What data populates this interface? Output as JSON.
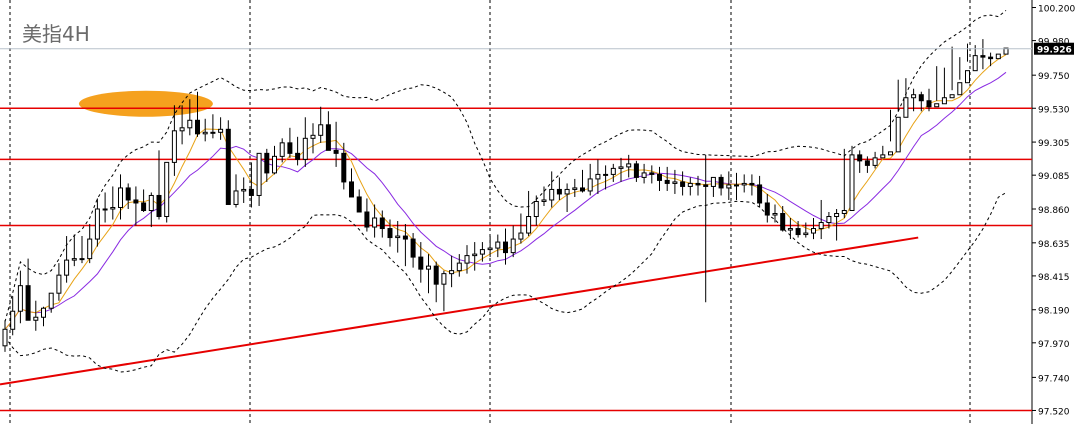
{
  "chart_data": {
    "type": "candlestick",
    "title": "美指4H",
    "ylim": [
      97.43,
      100.25
    ],
    "y_ticks": [
      "100.200",
      "99.980",
      "99.750",
      "99.530",
      "99.305",
      "99.085",
      "98.860",
      "98.635",
      "98.415",
      "98.190",
      "97.970",
      "97.740",
      "97.520"
    ],
    "current_price": "99.926",
    "horizontal_lines": [
      99.53,
      99.19,
      98.75,
      97.52
    ],
    "trendline": {
      "x": [
        0,
        116
      ],
      "y": [
        97.72,
        98.67
      ]
    },
    "resistance_zone": {
      "x_center": 17,
      "y": 99.56
    },
    "grid": "vertical dotted separators",
    "candles": {
      "o": [
        97.95,
        98.06,
        98.18,
        98.35,
        98.12,
        98.14,
        98.2,
        98.3,
        98.42,
        98.52,
        98.53,
        98.53,
        98.66,
        98.86,
        98.86,
        98.87,
        99.0,
        98.92,
        98.9,
        98.85,
        98.95,
        98.81,
        99.17,
        99.38,
        99.4,
        99.45,
        99.36,
        99.37,
        99.37,
        99.39,
        98.89,
        98.98,
        98.99,
        98.95,
        99.23,
        99.1,
        99.21,
        99.3,
        99.23,
        99.19,
        99.33,
        99.35,
        99.42,
        99.25,
        99.23,
        99.04,
        98.94,
        98.84,
        98.74,
        98.8,
        98.73,
        98.67,
        98.68,
        98.66,
        98.54,
        98.46,
        98.48,
        98.36,
        98.43,
        98.45,
        98.5,
        98.55,
        98.56,
        98.59,
        98.6,
        98.64,
        98.57,
        98.66,
        98.7,
        98.81,
        98.91,
        98.92,
        98.99,
        98.96,
        98.99,
        99.0,
        98.98,
        99.06,
        99.09,
        99.09,
        99.13,
        99.14,
        99.16,
        99.07,
        99.1,
        99.09,
        99.05,
        99.03,
        99.04,
        99.01,
        99.03,
        99.02,
        99.01,
        99.07,
        99.0,
        99.02,
        99.02,
        99.03,
        99.02,
        98.9,
        98.82,
        98.83,
        98.72,
        98.73,
        98.69,
        98.7,
        98.73,
        98.77,
        98.81,
        98.83,
        98.85,
        99.22,
        99.18,
        99.15,
        99.2,
        99.22,
        99.24,
        99.47,
        99.6,
        99.62,
        99.58,
        99.54,
        99.56,
        99.6,
        99.62,
        99.7,
        99.78,
        99.88,
        99.87,
        99.86,
        99.89
      ],
      "h": [
        98.12,
        98.28,
        98.45,
        98.53,
        98.25,
        98.21,
        98.29,
        98.5,
        98.68,
        98.69,
        98.68,
        98.76,
        98.93,
        98.97,
        99.01,
        99.09,
        99.03,
        99.01,
        98.99,
        98.97,
        99.25,
        99.11,
        99.55,
        99.55,
        99.59,
        99.64,
        99.46,
        99.49,
        99.47,
        99.45,
        99.09,
        99.07,
        99.17,
        99.23,
        99.26,
        99.28,
        99.33,
        99.4,
        99.34,
        99.47,
        99.43,
        99.54,
        99.51,
        99.44,
        99.3,
        99.13,
        98.99,
        98.93,
        98.89,
        98.85,
        98.79,
        98.78,
        98.76,
        98.7,
        98.64,
        98.56,
        98.51,
        98.45,
        98.55,
        98.56,
        98.62,
        98.64,
        98.64,
        98.68,
        98.69,
        98.73,
        98.75,
        98.83,
        98.98,
        98.95,
        99.01,
        99.11,
        99.07,
        99.03,
        99.06,
        99.12,
        99.16,
        99.19,
        99.15,
        99.16,
        99.2,
        99.22,
        99.18,
        99.16,
        99.15,
        99.14,
        99.14,
        99.12,
        99.11,
        99.07,
        99.08,
        99.22,
        99.06,
        99.09,
        99.11,
        99.1,
        99.09,
        99.09,
        99.08,
        98.96,
        98.89,
        98.88,
        98.8,
        98.78,
        98.77,
        98.8,
        98.92,
        98.84,
        98.86,
        99.26,
        99.28,
        99.25,
        99.21,
        99.24,
        99.28,
        99.52,
        99.72,
        99.73,
        99.66,
        99.64,
        99.66,
        99.81,
        99.8,
        99.94,
        99.87,
        99.96,
        99.95,
        99.99,
        99.9
      ],
      "l": [
        97.91,
        98.02,
        98.1,
        98.13,
        98.05,
        98.08,
        98.17,
        98.25,
        98.37,
        98.48,
        98.5,
        98.5,
        98.61,
        98.77,
        98.79,
        98.79,
        98.86,
        98.75,
        98.84,
        98.74,
        98.79,
        98.77,
        99.08,
        99.29,
        99.35,
        99.34,
        99.31,
        99.33,
        99.32,
        98.89,
        98.87,
        98.9,
        98.87,
        98.88,
        99.04,
        99.09,
        99.17,
        99.2,
        99.15,
        99.14,
        99.23,
        99.3,
        99.26,
        99.14,
        98.99,
        98.94,
        98.87,
        98.71,
        98.67,
        98.67,
        98.61,
        98.57,
        98.48,
        98.47,
        98.37,
        98.3,
        98.24,
        98.18,
        98.34,
        98.41,
        98.43,
        98.45,
        98.51,
        98.54,
        98.54,
        98.49,
        98.54,
        98.63,
        98.68,
        98.75,
        98.88,
        98.87,
        98.92,
        98.84,
        98.94,
        98.97,
        98.95,
        98.96,
        98.99,
        99.04,
        99.04,
        99.07,
        99.04,
        99.03,
        99.03,
        98.98,
        98.98,
        98.96,
        98.95,
        98.95,
        98.95,
        98.24,
        98.94,
        98.95,
        98.92,
        98.92,
        98.97,
        98.95,
        98.87,
        98.77,
        98.77,
        98.71,
        98.66,
        98.67,
        98.67,
        98.66,
        98.66,
        98.73,
        98.65,
        98.8,
        99.1,
        99.1,
        99.1,
        99.13,
        99.21,
        99.31,
        99.51,
        99.56,
        99.51,
        99.51,
        99.51,
        99.58,
        99.57,
        99.65,
        99.72,
        99.84,
        99.84,
        99.79,
        99.81
      ],
      "c": [
        98.06,
        98.18,
        98.35,
        98.12,
        98.14,
        98.2,
        98.3,
        98.42,
        98.52,
        98.53,
        98.53,
        98.66,
        98.86,
        98.86,
        98.87,
        99.0,
        98.92,
        98.9,
        98.85,
        98.95,
        98.81,
        99.17,
        99.38,
        99.4,
        99.45,
        99.36,
        99.37,
        99.37,
        99.39,
        98.89,
        98.98,
        98.99,
        98.95,
        99.23,
        99.1,
        99.21,
        99.3,
        99.23,
        99.19,
        99.33,
        99.35,
        99.42,
        99.25,
        99.23,
        99.04,
        98.94,
        98.84,
        98.74,
        98.8,
        98.73,
        98.67,
        98.68,
        98.66,
        98.54,
        98.46,
        98.48,
        98.36,
        98.43,
        98.45,
        98.5,
        98.55,
        98.56,
        98.59,
        98.6,
        98.64,
        98.57,
        98.66,
        98.7,
        98.81,
        98.91,
        98.92,
        98.99,
        98.96,
        98.99,
        99.0,
        98.98,
        99.06,
        99.09,
        99.09,
        99.13,
        99.14,
        99.16,
        99.07,
        99.1,
        99.09,
        99.05,
        99.03,
        99.04,
        99.01,
        99.03,
        99.02,
        99.01,
        99.07,
        99.0,
        99.02,
        99.02,
        99.03,
        99.02,
        98.9,
        98.82,
        98.83,
        98.72,
        98.73,
        98.69,
        98.7,
        98.73,
        98.77,
        98.81,
        98.83,
        98.85,
        99.22,
        99.18,
        99.15,
        99.2,
        99.22,
        99.24,
        99.47,
        99.6,
        99.62,
        99.58,
        99.54,
        99.56,
        99.6,
        99.62,
        99.7,
        99.78,
        99.88,
        99.87,
        99.86,
        99.89,
        99.93
      ]
    }
  }
}
